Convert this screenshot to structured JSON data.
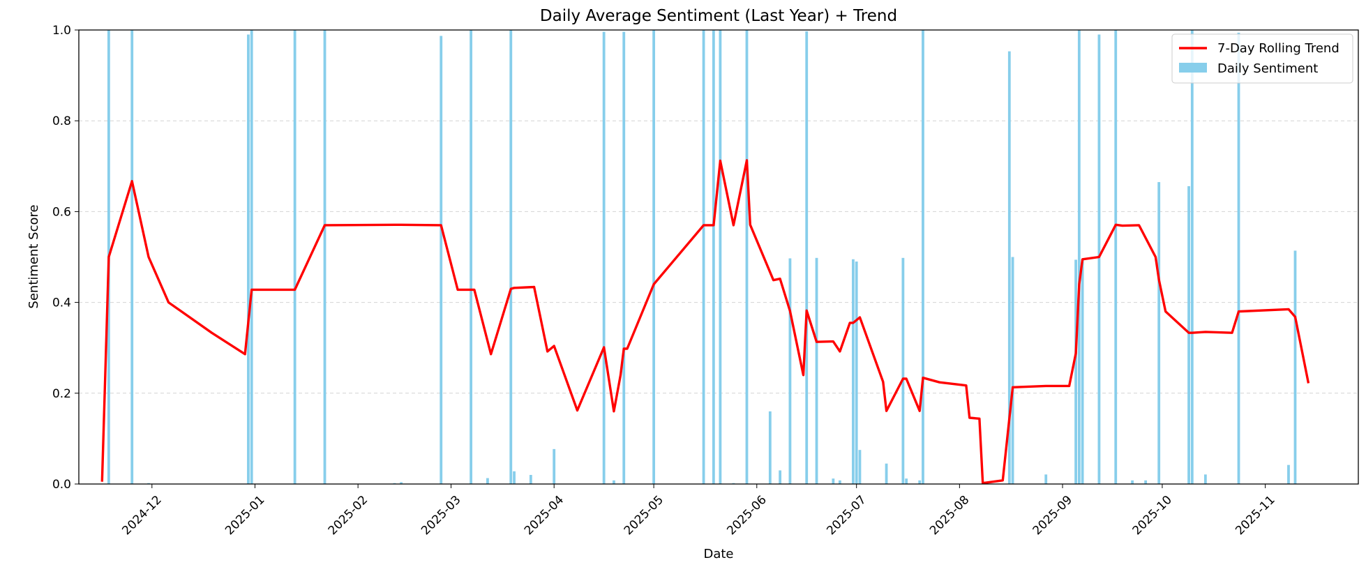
{
  "chart_data": {
    "type": "bar",
    "title": "Daily Average Sentiment (Last Year) + Trend",
    "xlabel": "Date",
    "ylabel": "Sentiment Score",
    "xlim": [
      "2024-11-09",
      "2025-11-29"
    ],
    "ylim": [
      0,
      1
    ],
    "grid": "y-dashed",
    "legend_position": "top-right",
    "x_ticks": [
      "2024-12",
      "2025-01",
      "2025-02",
      "2025-03",
      "2025-04",
      "2025-05",
      "2025-06",
      "2025-07",
      "2025-08",
      "2025-09",
      "2025-10",
      "2025-11"
    ],
    "y_ticks": [
      "0.0",
      "0.2",
      "0.4",
      "0.6",
      "0.8",
      "1.0"
    ],
    "colors": {
      "bars": "#87ceeb",
      "trend": "#ff0000"
    },
    "series": [
      {
        "name": "Daily Sentiment",
        "type": "bar",
        "points": [
          [
            "2024-11-18",
            1.0
          ],
          [
            "2024-11-25",
            1.0
          ],
          [
            "2024-11-30",
            0.002
          ],
          [
            "2024-12-30",
            0.99
          ],
          [
            "2024-12-31",
            1.0
          ],
          [
            "2025-01-13",
            1.0
          ],
          [
            "2025-01-22",
            1.0
          ],
          [
            "2025-02-12",
            0.002
          ],
          [
            "2025-02-14",
            0.004
          ],
          [
            "2025-02-26",
            0.987
          ],
          [
            "2025-03-07",
            1.0
          ],
          [
            "2025-03-12",
            0.013
          ],
          [
            "2025-03-19",
            1.0
          ],
          [
            "2025-03-20",
            0.028
          ],
          [
            "2025-03-25",
            0.02
          ],
          [
            "2025-04-01",
            0.077
          ],
          [
            "2025-04-16",
            0.996
          ],
          [
            "2025-04-19",
            0.008
          ],
          [
            "2025-04-22",
            0.996
          ],
          [
            "2025-05-01",
            1.0
          ],
          [
            "2025-05-16",
            1.0
          ],
          [
            "2025-05-19",
            0.999
          ],
          [
            "2025-05-21",
            1.0
          ],
          [
            "2025-05-25",
            0.002
          ],
          [
            "2025-05-29",
            1.0
          ],
          [
            "2025-06-05",
            0.16
          ],
          [
            "2025-06-08",
            0.03
          ],
          [
            "2025-06-11",
            0.497
          ],
          [
            "2025-06-16",
            0.997
          ],
          [
            "2025-06-19",
            0.498
          ],
          [
            "2025-06-24",
            0.012
          ],
          [
            "2025-06-26",
            0.008
          ],
          [
            "2025-06-30",
            0.495
          ],
          [
            "2025-07-01",
            0.49
          ],
          [
            "2025-07-02",
            0.075
          ],
          [
            "2025-07-10",
            0.045
          ],
          [
            "2025-07-15",
            0.498
          ],
          [
            "2025-07-16",
            0.012
          ],
          [
            "2025-07-20",
            0.008
          ],
          [
            "2025-07-21",
            1.0
          ],
          [
            "2025-08-16",
            0.953
          ],
          [
            "2025-08-17",
            0.5
          ],
          [
            "2025-08-27",
            0.021
          ],
          [
            "2025-09-05",
            0.494
          ],
          [
            "2025-09-06",
            1.0
          ],
          [
            "2025-09-07",
            0.495
          ],
          [
            "2025-09-12",
            0.99
          ],
          [
            "2025-09-17",
            1.0
          ],
          [
            "2025-09-22",
            0.008
          ],
          [
            "2025-09-26",
            0.008
          ],
          [
            "2025-09-30",
            0.665
          ],
          [
            "2025-10-09",
            0.656
          ],
          [
            "2025-10-10",
            1.0
          ],
          [
            "2025-10-14",
            0.021
          ],
          [
            "2025-10-24",
            0.994
          ],
          [
            "2025-11-08",
            0.042
          ],
          [
            "2025-11-10",
            0.514
          ]
        ]
      },
      {
        "name": "7-Day Rolling Trend",
        "type": "line",
        "points": [
          [
            "2024-11-16",
            0.005
          ],
          [
            "2024-11-18",
            0.5
          ],
          [
            "2024-11-25",
            0.667
          ],
          [
            "2024-11-30",
            0.5
          ],
          [
            "2024-12-06",
            0.4
          ],
          [
            "2024-12-19",
            0.333
          ],
          [
            "2024-12-29",
            0.286
          ],
          [
            "2024-12-31",
            0.428
          ],
          [
            "2025-01-13",
            0.428
          ],
          [
            "2025-01-22",
            0.57
          ],
          [
            "2025-02-12",
            0.571
          ],
          [
            "2025-02-14",
            0.571
          ],
          [
            "2025-02-26",
            0.57
          ],
          [
            "2025-03-03",
            0.428
          ],
          [
            "2025-03-08",
            0.428
          ],
          [
            "2025-03-13",
            0.286
          ],
          [
            "2025-03-19",
            0.43
          ],
          [
            "2025-03-20",
            0.432
          ],
          [
            "2025-03-26",
            0.434
          ],
          [
            "2025-03-30",
            0.292
          ],
          [
            "2025-04-01",
            0.304
          ],
          [
            "2025-04-08",
            0.162
          ],
          [
            "2025-04-16",
            0.301
          ],
          [
            "2025-04-19",
            0.16
          ],
          [
            "2025-04-21",
            0.24
          ],
          [
            "2025-04-22",
            0.298
          ],
          [
            "2025-04-23",
            0.298
          ],
          [
            "2025-05-01",
            0.44
          ],
          [
            "2025-05-16",
            0.57
          ],
          [
            "2025-05-19",
            0.57
          ],
          [
            "2025-05-21",
            0.712
          ],
          [
            "2025-05-25",
            0.57
          ],
          [
            "2025-05-29",
            0.713
          ],
          [
            "2025-05-30",
            0.571
          ],
          [
            "2025-06-06",
            0.449
          ],
          [
            "2025-06-08",
            0.452
          ],
          [
            "2025-06-11",
            0.381
          ],
          [
            "2025-06-15",
            0.24
          ],
          [
            "2025-06-16",
            0.382
          ],
          [
            "2025-06-19",
            0.313
          ],
          [
            "2025-06-24",
            0.314
          ],
          [
            "2025-06-26",
            0.292
          ],
          [
            "2025-06-29",
            0.355
          ],
          [
            "2025-06-30",
            0.355
          ],
          [
            "2025-07-02",
            0.367
          ],
          [
            "2025-07-09",
            0.225
          ],
          [
            "2025-07-10",
            0.161
          ],
          [
            "2025-07-15",
            0.232
          ],
          [
            "2025-07-16",
            0.232
          ],
          [
            "2025-07-20",
            0.161
          ],
          [
            "2025-07-21",
            0.234
          ],
          [
            "2025-07-26",
            0.224
          ],
          [
            "2025-08-03",
            0.217
          ],
          [
            "2025-08-04",
            0.146
          ],
          [
            "2025-08-07",
            0.144
          ],
          [
            "2025-08-08",
            0.002
          ],
          [
            "2025-08-14",
            0.008
          ],
          [
            "2025-08-17",
            0.213
          ],
          [
            "2025-08-27",
            0.216
          ],
          [
            "2025-09-03",
            0.216
          ],
          [
            "2025-09-05",
            0.288
          ],
          [
            "2025-09-06",
            0.44
          ],
          [
            "2025-09-07",
            0.495
          ],
          [
            "2025-09-12",
            0.5
          ],
          [
            "2025-09-17",
            0.571
          ],
          [
            "2025-09-19",
            0.569
          ],
          [
            "2025-09-24",
            0.57
          ],
          [
            "2025-09-29",
            0.5
          ],
          [
            "2025-09-30",
            0.45
          ],
          [
            "2025-10-02",
            0.38
          ],
          [
            "2025-10-09",
            0.333
          ],
          [
            "2025-10-10",
            0.333
          ],
          [
            "2025-10-14",
            0.335
          ],
          [
            "2025-10-22",
            0.333
          ],
          [
            "2025-10-24",
            0.38
          ],
          [
            "2025-11-08",
            0.385
          ],
          [
            "2025-11-10",
            0.368
          ],
          [
            "2025-11-14",
            0.222
          ]
        ]
      }
    ]
  }
}
